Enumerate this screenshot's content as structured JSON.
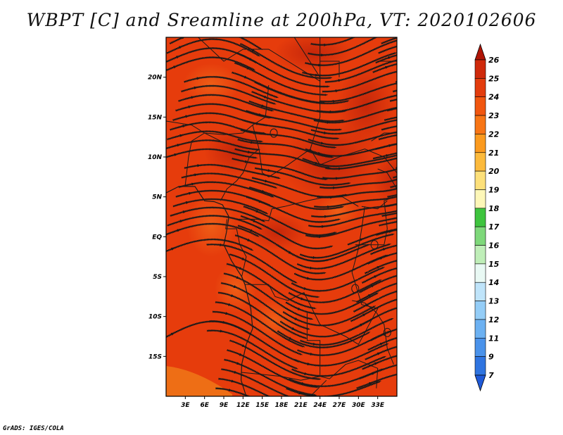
{
  "title": "WBPT [C] and Sreamline at 200hPa, VT: 2020102606",
  "credit": "GrADS: IGES/COLA",
  "map": {
    "lon_range": [
      0,
      36
    ],
    "lat_range": [
      -20,
      25
    ],
    "lon_ticks": [
      "3E",
      "6E",
      "9E",
      "12E",
      "15E",
      "18E",
      "21E",
      "24E",
      "27E",
      "30E",
      "33E"
    ],
    "lat_ticks": [
      "20N",
      "15N",
      "10N",
      "5N",
      "EQ",
      "5S",
      "10S",
      "15S"
    ],
    "colors": {
      "field_base": "#e63c0c",
      "field_warm": "#cc2a0a",
      "field_cool": "#ee5412",
      "field_orange": "#f07a18",
      "lines": "#1a1a1a"
    }
  },
  "colorbar": {
    "labels": [
      "26",
      "25",
      "24",
      "23",
      "22",
      "21",
      "20",
      "19",
      "18",
      "17",
      "16",
      "15",
      "14",
      "13",
      "12",
      "11",
      "9",
      "7"
    ],
    "colors": [
      "#b01506",
      "#cf2a0b",
      "#e33c0d",
      "#f1560f",
      "#f87515",
      "#fb9a1e",
      "#fcba3c",
      "#fde07a",
      "#fdf7b8",
      "#3ec43e",
      "#7ed87a",
      "#bfeeb8",
      "#e9f9f4",
      "#bfe4fa",
      "#94cdf7",
      "#6cb1f2",
      "#4a92ea",
      "#2f74e0",
      "#1f5ad8"
    ]
  }
}
